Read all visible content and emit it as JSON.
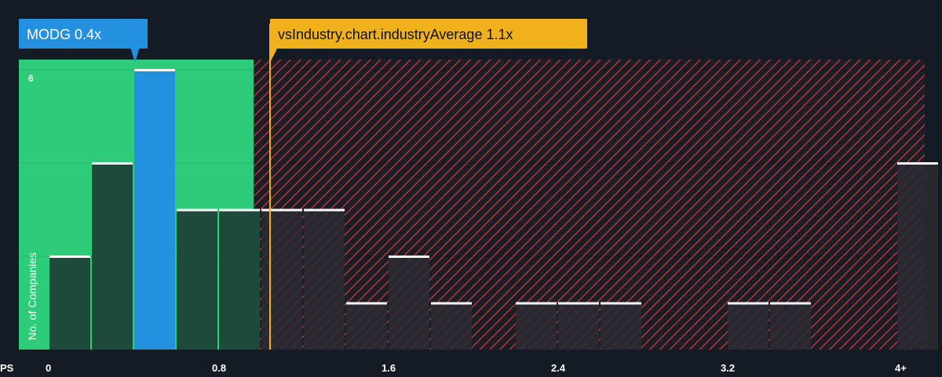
{
  "colors": {
    "background": "#151b24",
    "good_zone": "#2ecc7a",
    "bad_zone_hatch": "#d83a44",
    "bar_fill": "#1d4a3a",
    "bar_fill_dark": "#2a2a33",
    "highlight_bar": "#2490e0",
    "industry_marker": "#f0b11c",
    "bar_cap": "#ffffff",
    "axis_text": "#ffffff"
  },
  "chart_data": {
    "type": "bar",
    "title": "",
    "xlabel": "PS",
    "ylabel": "No. of Companies",
    "xlim": [
      0,
      4
    ],
    "ylim": [
      0,
      6
    ],
    "y_ticks": [
      6
    ],
    "x_ticks": [
      {
        "value": 0,
        "label": "0"
      },
      {
        "value": 0.8,
        "label": "0.8"
      },
      {
        "value": 1.6,
        "label": "1.6"
      },
      {
        "value": 2.4,
        "label": "2.4"
      },
      {
        "value": 3.2,
        "label": "3.2"
      },
      {
        "value": 4,
        "label": "4+"
      }
    ],
    "bin_width": 0.2,
    "bins": [
      {
        "x": 0.0,
        "count": 2
      },
      {
        "x": 0.2,
        "count": 4
      },
      {
        "x": 0.4,
        "count": 6,
        "highlight": true
      },
      {
        "x": 0.6,
        "count": 3
      },
      {
        "x": 0.8,
        "count": 3
      },
      {
        "x": 1.0,
        "count": 3
      },
      {
        "x": 1.2,
        "count": 3
      },
      {
        "x": 1.4,
        "count": 1
      },
      {
        "x": 1.6,
        "count": 2
      },
      {
        "x": 1.8,
        "count": 1
      },
      {
        "x": 2.2,
        "count": 1
      },
      {
        "x": 2.4,
        "count": 1
      },
      {
        "x": 2.6,
        "count": 1
      },
      {
        "x": 3.2,
        "count": 1
      },
      {
        "x": 3.4,
        "count": 1
      },
      {
        "x": 4.0,
        "count": 4
      }
    ],
    "good_zone_end": 1.0,
    "company": {
      "label": "MODG 0.4x",
      "value": 0.4
    },
    "industry": {
      "label": "vsIndustry.chart.industryAverage 1.1x",
      "value": 1.1
    }
  }
}
